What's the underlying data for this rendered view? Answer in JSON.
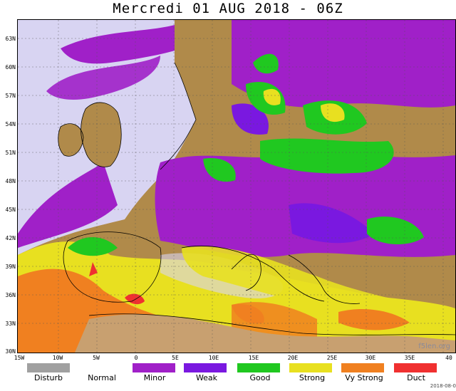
{
  "title": "Mercredi 01 AUG 2018 - 06Z",
  "lat_labels": [
    "63N",
    "60N",
    "57N",
    "54N",
    "51N",
    "48N",
    "45N",
    "42N",
    "39N",
    "36N",
    "33N",
    "30N"
  ],
  "lon_labels": [
    "15W",
    "10W",
    "5W",
    "0",
    "5E",
    "10E",
    "15E",
    "20E",
    "25E",
    "30E",
    "35E",
    "40"
  ],
  "legend": [
    {
      "label": "Disturb",
      "color": "#a0a0a0"
    },
    {
      "label": "Normal",
      "color": "#ffffff"
    },
    {
      "label": "Minor",
      "color": "#a020c8"
    },
    {
      "label": "Weak",
      "color": "#7a18e0"
    },
    {
      "label": "Good",
      "color": "#20c820"
    },
    {
      "label": "Strong",
      "color": "#e8e020"
    },
    {
      "label": "Vy Strong",
      "color": "#f08020"
    },
    {
      "label": "Duct",
      "color": "#f03030"
    }
  ],
  "watermark": "f5len.org",
  "datestamp": "2018-08-0"
}
